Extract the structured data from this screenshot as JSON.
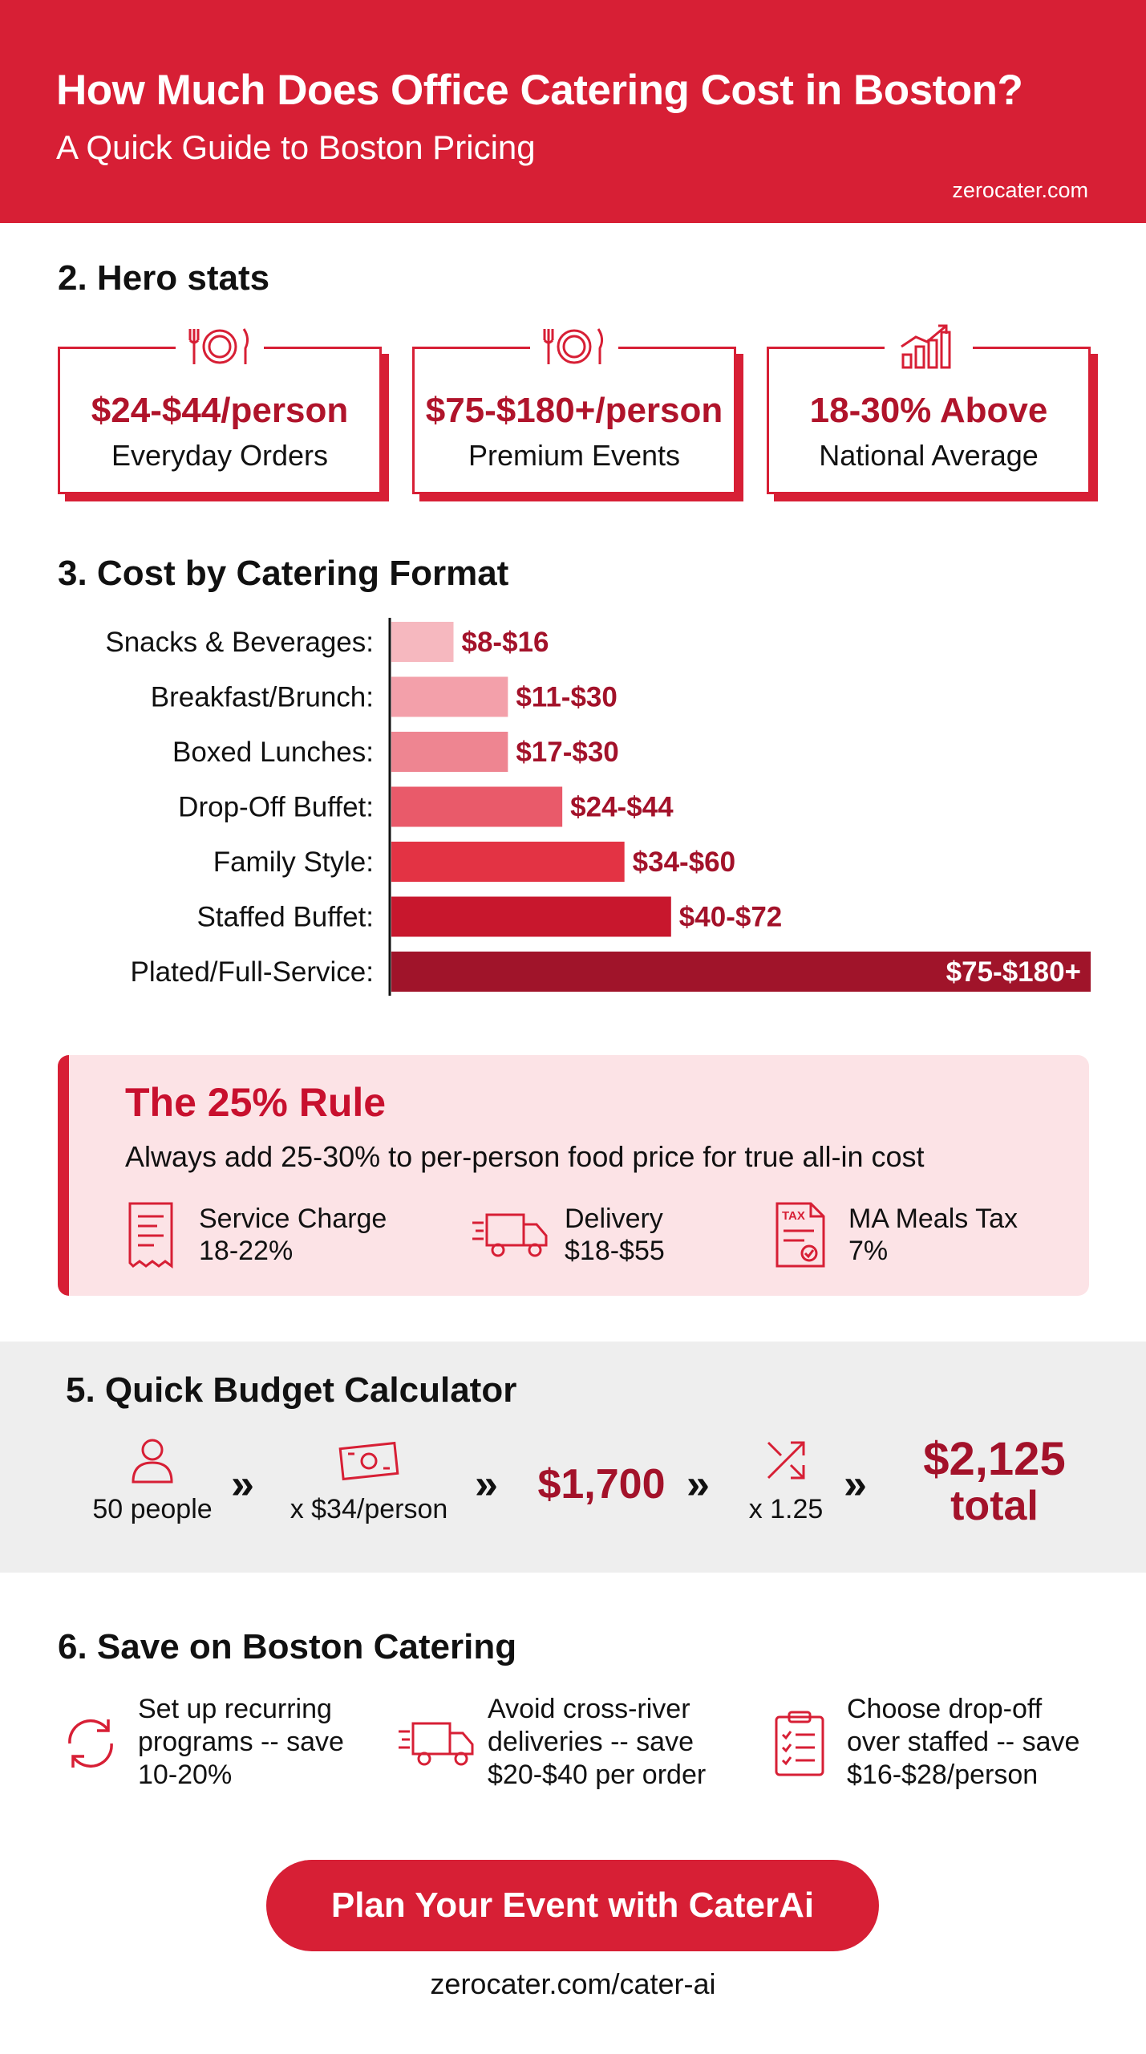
{
  "header": {
    "title": "How Much Does Office Catering Cost in Boston?",
    "subtitle": "A Quick Guide to Boston Pricing",
    "site": "zerocater.com"
  },
  "hero": {
    "heading": "2. Hero stats",
    "cards": [
      {
        "value": "$24-$44/person",
        "label": "Everyday Orders",
        "icon": "plate-cutlery-icon"
      },
      {
        "value": "$75-$180+/person",
        "label": "Premium Events",
        "icon": "plate-cutlery-icon"
      },
      {
        "value": "18-30% Above",
        "label": "National Average",
        "icon": "rising-bar-chart-icon"
      }
    ]
  },
  "formats": {
    "heading": "3. Cost by Catering Format"
  },
  "chart_data": {
    "type": "bar",
    "orientation": "horizontal",
    "categories": [
      "Snacks & Beverages:",
      "Breakfast/Brunch:",
      "Boxed Lunches:",
      "Drop-Off Buffet:",
      "Family Style:",
      "Staffed Buffet:",
      "Plated/Full-Service:"
    ],
    "value_labels": [
      "$8-$16",
      "$11-$30",
      "$17-$30",
      "$24-$44",
      "$34-$60",
      "$40-$72",
      "$75-$180+"
    ],
    "series": [
      {
        "low": [
          8,
          11,
          17,
          24,
          34,
          40,
          75
        ],
        "high": [
          16,
          30,
          30,
          44,
          60,
          72,
          180
        ]
      }
    ],
    "bar_value_basis": "upper bound of range (approximate)",
    "values": [
      16,
      30,
      30,
      44,
      60,
      72,
      180
    ],
    "colors": [
      "#f6b8bf",
      "#f3a0aa",
      "#ee8591",
      "#e95a6a",
      "#e33344",
      "#c8172d",
      "#a0142a"
    ],
    "label_color": "#a3122a",
    "title": "",
    "xlabel": "",
    "ylabel": "",
    "grid": false
  },
  "rule": {
    "title": "The 25% Rule",
    "description": "Always add 25-30% to per-person food price for true all-in cost",
    "items": [
      {
        "line1": "Service Charge",
        "line2": "18-22%",
        "icon": "receipt-icon"
      },
      {
        "line1": "Delivery",
        "line2": "$18-$55",
        "icon": "delivery-truck-icon"
      },
      {
        "line1": "MA Meals Tax",
        "line2": "7%",
        "icon": "tax-document-icon",
        "icon_text": "TAX"
      }
    ]
  },
  "calculator": {
    "heading": "5. Quick Budget Calculator",
    "people": "50 people",
    "price": "x $34/person",
    "subtotal": "$1,700",
    "multiplier": "x 1.25",
    "total_amount": "$2,125",
    "total_word": "total",
    "arrow": "»"
  },
  "save": {
    "heading": "6. Save on Boston Catering",
    "tips": [
      {
        "lines": [
          "Set up recurring",
          "programs -- save",
          "10-20%"
        ],
        "icon": "recurring-arrows-icon"
      },
      {
        "lines": [
          "Avoid cross-river",
          "deliveries -- save",
          "$20-$40 per order"
        ],
        "icon": "delivery-truck-icon"
      },
      {
        "lines": [
          "Choose drop-off",
          "over staffed -- save",
          "$16-$28/person"
        ],
        "icon": "clipboard-checklist-icon"
      }
    ]
  },
  "cta": {
    "button_label": "Plan Your Event with CaterAi",
    "url": "zerocater.com/cater-ai"
  }
}
